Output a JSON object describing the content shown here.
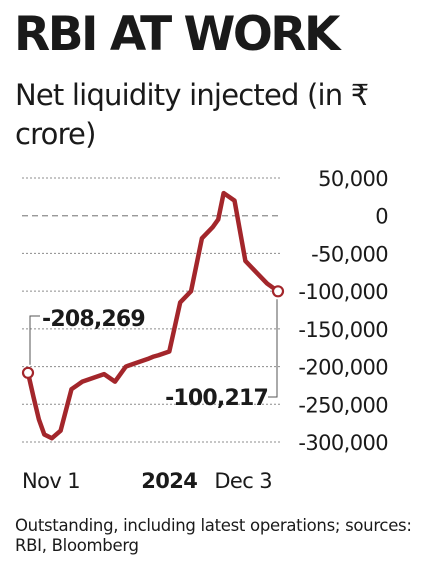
{
  "headline": "RBI AT WORK",
  "subtitle": "Net liquidity injected (in ₹ crore)",
  "footnote": "Outstanding, including latest operations; sources: RBI, Bloomberg",
  "colors": {
    "line": "#a3262b",
    "grid": "#8c8c8c",
    "text": "#1a1a1a"
  },
  "chart_data": {
    "type": "line",
    "title": "Net liquidity injected (in ₹ crore)",
    "xlabel": "",
    "ylabel": "",
    "ylim": [
      -300000,
      50000
    ],
    "yticks": [
      50000,
      0,
      -50000,
      -100000,
      -150000,
      -200000,
      -250000,
      -300000
    ],
    "ytick_labels": [
      "50,000",
      "0",
      "-50,000",
      "-100,000",
      "-150,000",
      "-200,000",
      "-250,000",
      "-300,000"
    ],
    "xtick_labels": [
      {
        "label": "Nov 1",
        "bold": false,
        "x": 0
      },
      {
        "label": "2024",
        "bold": true,
        "x": 13
      },
      {
        "label": "Dec 3",
        "bold": false,
        "x": 23
      }
    ],
    "grid": true,
    "zero_line_style": "dashed",
    "series": [
      {
        "x": [
          0,
          0.5,
          1,
          1.5,
          2.2,
          3,
          4,
          4.5,
          5,
          6,
          7,
          7.5,
          8,
          9,
          10,
          11,
          11.5,
          12,
          13,
          14,
          15,
          16,
          17,
          17.5,
          18,
          19,
          20,
          21,
          22,
          23
        ],
        "values": [
          -208269,
          -240000,
          -270000,
          -290000,
          -295000,
          -285000,
          -230000,
          -225000,
          -220000,
          -215000,
          -210000,
          -215000,
          -220000,
          -200000,
          -195000,
          -190000,
          -187000,
          -185000,
          -180000,
          -115000,
          -100000,
          -30000,
          -15000,
          -5000,
          30000,
          20000,
          -60000,
          -75000,
          -90000,
          -100217
        ]
      }
    ],
    "annotations": [
      {
        "text": "-208,269",
        "point": "first"
      },
      {
        "text": "-100,217",
        "point": "last"
      }
    ]
  }
}
